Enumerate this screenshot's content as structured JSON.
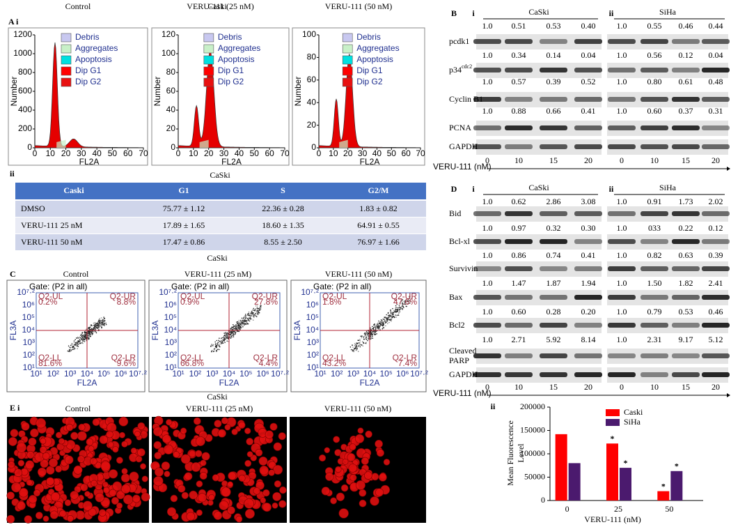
{
  "panel_a": {
    "label": "A i",
    "title": "Caski",
    "x_label": "FL2A",
    "y_label": "Number",
    "x_ticks": [
      "0",
      "10",
      "20",
      "30",
      "40",
      "50",
      "60",
      "70"
    ],
    "legend": [
      "Debris",
      "Aggregates",
      "Apoptosis",
      "Dip G1",
      "Dip G2"
    ],
    "plots": [
      {
        "title": "Control",
        "y_ticks": [
          "0",
          "200",
          "400",
          "600",
          "800",
          "1000",
          "1200"
        ]
      },
      {
        "title": "VERU-111  (25 nM)",
        "y_ticks": [
          "0",
          "20",
          "40",
          "60",
          "80",
          "100",
          "120"
        ]
      },
      {
        "title": "VERU-111  (50 nM)",
        "y_ticks": [
          "0",
          "20",
          "40",
          "60",
          "80",
          "100"
        ]
      }
    ]
  },
  "panel_a_ii": {
    "label": "ii",
    "title": "CaSki",
    "table": {
      "header": [
        "Caski",
        "G1",
        "S",
        "G2/M"
      ],
      "rows": [
        [
          "DMSO",
          "75.77 ± 1.12",
          "22.36 ± 0.28",
          "1.83 ± 0.82"
        ],
        [
          "VERU-111  25 nM",
          "17.89 ± 1.65",
          "18.60 ± 1.35",
          "64.91 ± 0.55"
        ],
        [
          "VERU-111  50 nM",
          "17.47 ± 0.86",
          "8.55 ± 2.50",
          "76.97 ± 1.66"
        ]
      ]
    }
  },
  "panel_c": {
    "label": "C",
    "title": "CaSki",
    "gate": "Gate: (P2 in all)",
    "x_label": "FL2A",
    "y_label": "FL3A",
    "ticks": [
      "10¹",
      "10²",
      "10³",
      "10⁴",
      "10⁵",
      "10⁶",
      "10⁷·²"
    ],
    "quadrant_names": [
      "Q2-UL",
      "Q2-UR",
      "Q2-LL",
      "Q2-LR"
    ],
    "plots": [
      {
        "title": "Control",
        "quadrants": [
          "0.2%",
          "8.8%",
          "81.6%",
          "9.6%"
        ]
      },
      {
        "title": "VERU-111  (25 nM)",
        "quadrants": [
          "0.9%",
          "27.8%",
          "66.8%",
          "4.4%"
        ]
      },
      {
        "title": "VERU-111  (50 nM)",
        "quadrants": [
          "1.8%",
          "47.6%",
          "43.2%",
          "7.4%"
        ]
      }
    ]
  },
  "panel_e": {
    "label": "E i",
    "title": "CaSki",
    "images": [
      "Control",
      "VERU-111  (25 nM)",
      "VERU-111  (50 nM)"
    ]
  },
  "panel_b": {
    "label": "B",
    "x_label": "VERU-111  (nM)",
    "doses": [
      "0",
      "10",
      "15",
      "20"
    ],
    "loading_control": "GAPDH",
    "proteins": [
      "pcdk1",
      {
        "base": "p34",
        "sup": "cdc2"
      },
      "Cyclin  B1",
      "PCNA"
    ],
    "blots": [
      {
        "label": "i",
        "cell_line": "CaSki",
        "rows": [
          [
            "1.0",
            "0.51",
            "0.53",
            "0.40"
          ],
          [
            "1.0",
            "0.34",
            "0.14",
            "0.04"
          ],
          [
            "1.0",
            "0.57",
            "0.39",
            "0.52"
          ],
          [
            "1.0",
            "0.88",
            "0.66",
            "0.41"
          ]
        ]
      },
      {
        "label": "ii",
        "cell_line": "SiHa",
        "rows": [
          [
            "1.0",
            "0.55",
            "0.46",
            "0.44"
          ],
          [
            "1.0",
            "0.56",
            "0.12",
            "0.04"
          ],
          [
            "1.0",
            "0.80",
            "0.61",
            "0.48"
          ],
          [
            "1.0",
            "0.60",
            "0.37",
            "0.31"
          ]
        ]
      }
    ]
  },
  "panel_d": {
    "label": "D",
    "x_label": "VERU-111  (nM)",
    "doses": [
      "0",
      "10",
      "15",
      "20"
    ],
    "loading_control": "GAPDH",
    "proteins": [
      "Bid",
      "Bcl-xl",
      "Survivin",
      "Bax",
      "Bcl2",
      {
        "lines": [
          "Cleaved",
          "PARP"
        ]
      }
    ],
    "blots": [
      {
        "label": "i",
        "cell_line": "CaSki",
        "rows": [
          [
            "1.0",
            "0.62",
            "2.86",
            "3.08"
          ],
          [
            "1.0",
            "0.97",
            "0.32",
            "0.30"
          ],
          [
            "1.0",
            "0.86",
            "0.74",
            "0.41"
          ],
          [
            "1.0",
            "1.47",
            "1.87",
            "1.94"
          ],
          [
            "1.0",
            "0.60",
            "0.28",
            "0.20"
          ],
          [
            "1.0",
            "2.71",
            "5.92",
            "8.14"
          ]
        ]
      },
      {
        "label": "ii",
        "cell_line": "SiHa",
        "rows": [
          [
            "1.0",
            "0.91",
            "1.73",
            "2.02"
          ],
          [
            "1.0",
            "033",
            "0.22",
            "0.12"
          ],
          [
            "1.0",
            "0.82",
            "0.63",
            "0.39"
          ],
          [
            "1.0",
            "1.50",
            "1.82",
            "2.41"
          ],
          [
            "1.0",
            "0.79",
            "0.53",
            "0.46"
          ],
          [
            "1.0",
            "2.31",
            "9.17",
            "5.12"
          ]
        ]
      }
    ]
  },
  "chart_data": {
    "type": "bar",
    "label": "ii",
    "x_label": "VERU-111      (nM)",
    "y_label": [
      "Mean Fluorescence",
      "Level"
    ],
    "categories": [
      "0",
      "25",
      "50"
    ],
    "series": [
      {
        "name": "Caski",
        "color": "#ff0000",
        "values": [
          142000,
          122000,
          20000
        ]
      },
      {
        "name": "SiHa",
        "color": "#4b1a6e",
        "values": [
          80000,
          70000,
          63000
        ]
      }
    ],
    "ylim": [
      0,
      200000
    ],
    "yticks": [
      0,
      50000,
      100000,
      150000,
      200000
    ],
    "significance_marker": "*"
  }
}
